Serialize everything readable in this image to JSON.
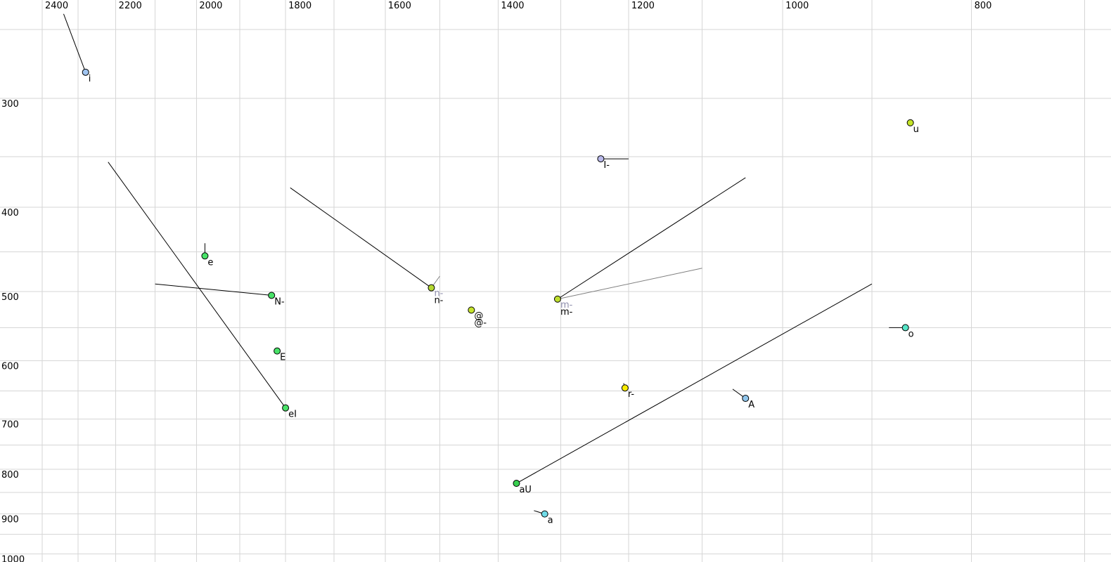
{
  "chart_data": {
    "type": "scatter",
    "title": "",
    "subtitle": "",
    "legend": "none",
    "grid": true,
    "x_axis": {
      "position": "top",
      "unit": "Hz",
      "scale": "log",
      "direction": "values decrease left-to-right",
      "tick_labels": [
        2400,
        2200,
        2000,
        1800,
        1600,
        1400,
        1200,
        1000,
        800
      ],
      "gridline_values": [
        2400,
        2300,
        2200,
        2100,
        2000,
        1900,
        1800,
        1700,
        1600,
        1500,
        1400,
        1300,
        1200,
        1100,
        1000,
        900,
        800,
        700
      ],
      "range": [
        2450,
        690
      ]
    },
    "y_axis": {
      "position": "left",
      "unit": "Hz",
      "scale": "log",
      "direction": "values increase top-to-bottom",
      "tick_labels": [
        300,
        400,
        500,
        600,
        700,
        800,
        900,
        1000
      ],
      "gridline_values": [
        250,
        300,
        350,
        400,
        450,
        500,
        550,
        600,
        650,
        700,
        750,
        800,
        850,
        900,
        950,
        1000
      ],
      "range": [
        245,
        1010
      ]
    },
    "points": [
      {
        "labels": [
          {
            "text": "i",
            "color": "#000000"
          }
        ],
        "f2": 2280,
        "f1": 280,
        "fill": "#a0c4f0",
        "trails": [
          {
            "f2": 2340,
            "f1": 240,
            "color": "#000000"
          }
        ]
      },
      {
        "labels": [
          {
            "text": "u",
            "color": "#000000"
          }
        ],
        "f2": 860,
        "f1": 320,
        "fill": "#c4e428",
        "trails": []
      },
      {
        "labels": [
          {
            "text": "I-",
            "color": "#000000"
          }
        ],
        "f2": 1240,
        "f1": 352,
        "fill": "#b8b8ea",
        "trails": [
          {
            "f2": 1200,
            "f1": 352,
            "color": "#000000"
          }
        ]
      },
      {
        "labels": [
          {
            "text": "e",
            "color": "#000000"
          }
        ],
        "f2": 1980,
        "f1": 455,
        "fill": "#48e268",
        "trails": [
          {
            "f2": 1980,
            "f1": 440,
            "color": "#000000"
          }
        ]
      },
      {
        "labels": [
          {
            "text": "N-",
            "color": "#000000"
          }
        ],
        "f2": 1830,
        "f1": 505,
        "fill": "#48e268",
        "trails": [
          {
            "f2": 2100,
            "f1": 490,
            "color": "#000000"
          }
        ]
      },
      {
        "labels": [
          {
            "text": "n-",
            "color": "#8f8fae"
          },
          {
            "text": "n-",
            "color": "#000000"
          }
        ],
        "f2": 1515,
        "f1": 495,
        "fill": "#b4d830",
        "trails": [
          {
            "f2": 1790,
            "f1": 380,
            "color": "#000000"
          },
          {
            "f2": 1500,
            "f1": 480,
            "color": "#808080"
          }
        ]
      },
      {
        "labels": [
          {
            "text": "@",
            "color": "#000000"
          },
          {
            "text": "@-",
            "color": "#000000"
          }
        ],
        "f2": 1445,
        "f1": 525,
        "fill": "#c6e42c",
        "trails": []
      },
      {
        "labels": [
          {
            "text": "m-",
            "color": "#8f8fae"
          },
          {
            "text": "m-",
            "color": "#000000"
          }
        ],
        "f2": 1305,
        "f1": 510,
        "fill": "#bede2e",
        "trails": [
          {
            "f2": 1045,
            "f1": 370,
            "color": "#000000"
          },
          {
            "f2": 1100,
            "f1": 470,
            "color": "#808080"
          }
        ]
      },
      {
        "labels": [
          {
            "text": "E",
            "color": "#000000"
          }
        ],
        "f2": 1818,
        "f1": 585,
        "fill": "#48e268",
        "trails": []
      },
      {
        "labels": [
          {
            "text": "eI",
            "color": "#000000"
          }
        ],
        "f2": 1800,
        "f1": 680,
        "fill": "#48e268",
        "trails": [
          {
            "f2": 2220,
            "f1": 355,
            "color": "#000000"
          }
        ]
      },
      {
        "labels": [
          {
            "text": "r-",
            "color": "#000000"
          }
        ],
        "f2": 1205,
        "f1": 645,
        "fill": "#f8ec00",
        "trails": [
          {
            "f2": 1207,
            "f1": 637,
            "color": "#000000"
          }
        ]
      },
      {
        "labels": [
          {
            "text": "A",
            "color": "#000000"
          }
        ],
        "f2": 1045,
        "f1": 663,
        "fill": "#90c6ec",
        "trails": [
          {
            "f2": 1061,
            "f1": 647,
            "color": "#000000"
          }
        ]
      },
      {
        "labels": [
          {
            "text": "o",
            "color": "#000000"
          }
        ],
        "f2": 865,
        "f1": 550,
        "fill": "#55e6c8",
        "trails": [
          {
            "f2": 882,
            "f1": 550,
            "color": "#000000"
          }
        ]
      },
      {
        "labels": [
          {
            "text": "aU",
            "color": "#000000"
          }
        ],
        "f2": 1370,
        "f1": 830,
        "fill": "#38d050",
        "trails": [
          {
            "f2": 900,
            "f1": 490,
            "color": "#000000"
          }
        ]
      },
      {
        "labels": [
          {
            "text": "a",
            "color": "#000000"
          }
        ],
        "f2": 1325,
        "f1": 900,
        "fill": "#70dce8",
        "trails": [
          {
            "f2": 1342,
            "f1": 892,
            "color": "#000000"
          }
        ]
      }
    ]
  },
  "style": {
    "background": "#ffffff",
    "gridline_color": "#d6d6d6",
    "tick_label_color": "#000000",
    "marker_outline_color": "#000000",
    "gray_trail_color": "#808080",
    "gray_label_color": "#8f8fae"
  }
}
